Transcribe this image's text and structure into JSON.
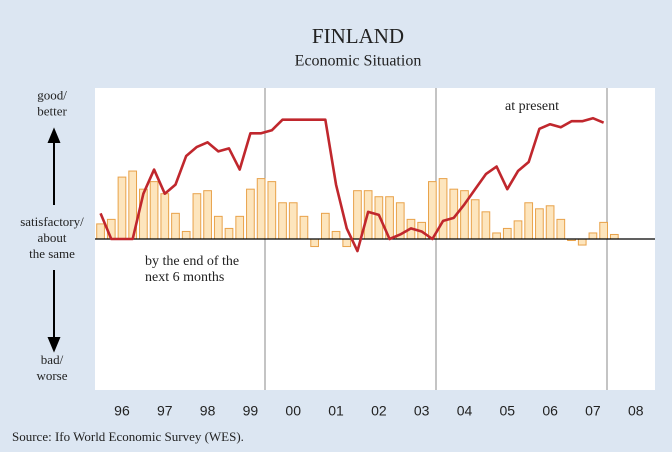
{
  "chart_data": {
    "type": "bar",
    "title": "FINLAND",
    "subtitle": "Economic Situation",
    "source": "Source: Ifo World Economic Survey (WES).",
    "annotations": [
      {
        "text": [
          "at present"
        ]
      },
      {
        "text": [
          "by the end of the",
          "next 6 months"
        ]
      }
    ],
    "x": [
      1996.0,
      1996.25,
      1996.5,
      1996.75,
      1997.0,
      1997.25,
      1997.5,
      1997.75,
      1998.0,
      1998.25,
      1998.5,
      1998.75,
      1999.0,
      1999.25,
      1999.5,
      1999.75,
      2000.0,
      2000.25,
      2000.5,
      2000.75,
      2001.0,
      2001.25,
      2001.5,
      2001.75,
      2002.0,
      2002.25,
      2002.5,
      2002.75,
      2003.0,
      2003.25,
      2003.5,
      2003.75,
      2004.0,
      2004.25,
      2004.5,
      2004.75,
      2005.0,
      2005.25,
      2005.5,
      2005.75,
      2006.0,
      2006.25,
      2006.5,
      2006.75,
      2007.0,
      2007.25,
      2007.5,
      2007.75,
      2008.0
    ],
    "series": [
      {
        "name": "by the end of the next 6 months",
        "kind": "bar",
        "color": "#fde5bd",
        "stroke": "#e8a24a",
        "values": [
          10,
          13,
          41,
          45,
          33,
          38,
          30,
          17,
          5,
          30,
          32,
          15,
          7,
          15,
          33,
          40,
          38,
          24,
          24,
          15,
          -5,
          17,
          5,
          -5,
          32,
          32,
          28,
          28,
          24,
          13,
          11,
          38,
          40,
          33,
          32,
          26,
          18,
          4,
          7,
          12,
          24,
          20,
          22,
          13,
          -1,
          -4,
          4,
          11,
          3
        ]
      },
      {
        "name": "at present",
        "kind": "line",
        "color": "#c0272d",
        "values": [
          17,
          0,
          0,
          0,
          30,
          46,
          30,
          36,
          55,
          61,
          64,
          58,
          60,
          46,
          70,
          70,
          72,
          79,
          79,
          79,
          79,
          79,
          36,
          7,
          -8,
          18,
          16,
          0,
          3,
          7,
          5,
          0,
          12,
          14,
          23,
          33,
          43,
          48,
          33,
          45,
          51,
          73,
          76,
          74,
          78,
          78,
          80,
          77,
          null
        ]
      }
    ],
    "xlim": [
      1995.87,
      2008.95
    ],
    "xticks": [
      {
        "value": 1996.5,
        "label": "96"
      },
      {
        "value": 1997.5,
        "label": "97"
      },
      {
        "value": 1998.5,
        "label": "98"
      },
      {
        "value": 1999.5,
        "label": "99"
      },
      {
        "value": 2000.5,
        "label": "00"
      },
      {
        "value": 2001.5,
        "label": "01"
      },
      {
        "value": 2002.5,
        "label": "02"
      },
      {
        "value": 2003.5,
        "label": "03"
      },
      {
        "value": 2004.5,
        "label": "04"
      },
      {
        "value": 2005.5,
        "label": "05"
      },
      {
        "value": 2006.5,
        "label": "06"
      },
      {
        "value": 2007.5,
        "label": "07"
      },
      {
        "value": 2008.5,
        "label": "08"
      }
    ],
    "ylim": [
      -100,
      100
    ],
    "yticks": [
      {
        "value": 89,
        "label": [
          "good/",
          "better"
        ]
      },
      {
        "value": 0,
        "label": [
          "satisfactory/",
          "about",
          "the same"
        ]
      },
      {
        "value": -86,
        "label": [
          "bad/",
          "worse"
        ]
      }
    ]
  }
}
